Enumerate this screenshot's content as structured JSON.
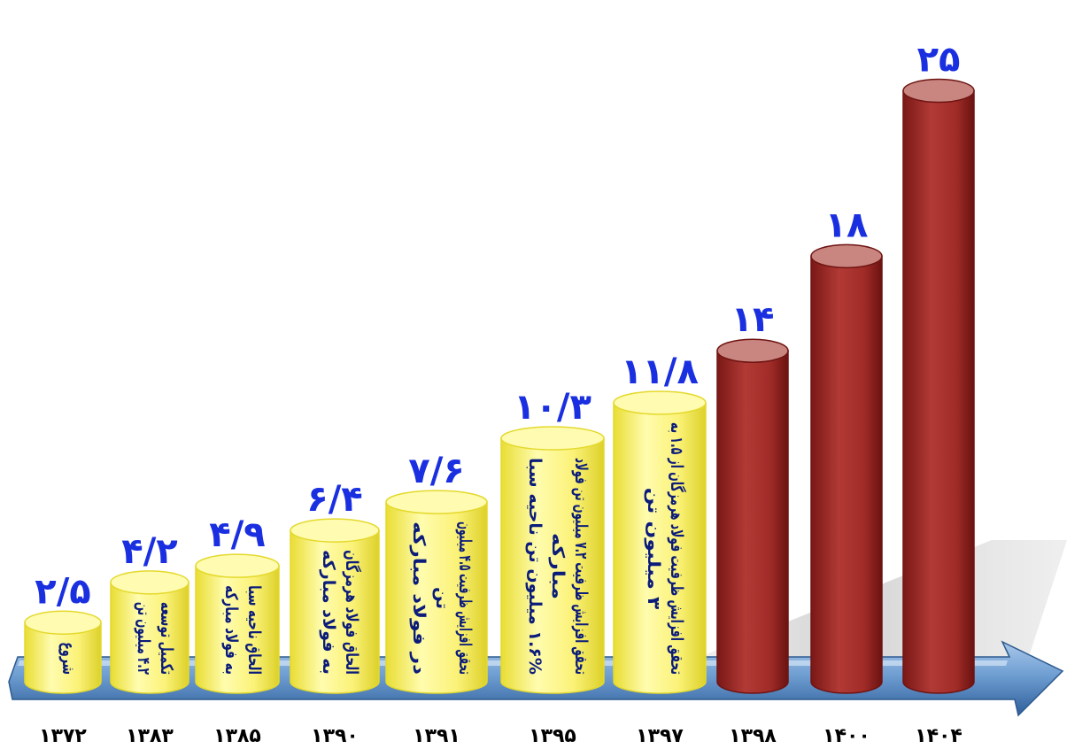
{
  "chart_data": {
    "type": "bar",
    "title": "",
    "xlabel": "",
    "ylabel": "",
    "ylim": [
      0,
      25
    ],
    "categories": [
      "۱۳۷۲",
      "۱۳۸۳",
      "۱۳۸۵",
      "۱۳۹۰",
      "۱۳۹۱",
      "۱۳۹۵",
      "۱۳۹۷",
      "۱۳۹۸",
      "۱۴۰۰",
      "۱۴۰۴"
    ],
    "values": [
      2.5,
      4.2,
      4.9,
      6.4,
      7.6,
      10.3,
      11.8,
      14,
      18,
      25
    ],
    "value_labels": [
      "۲/۵",
      "۴/۲",
      "۴/۹",
      "۶/۴",
      "۷/۶",
      "۱۰/۳",
      "۱۱/۸",
      "۱۴",
      "۱۸",
      "۲۵"
    ],
    "annotations": [
      [
        "شروع"
      ],
      [
        "تکمیل توسعه",
        "۴.۲ میلیون تن"
      ],
      [
        "الحاق ناحیه سبا",
        "به فولاد مبارکه"
      ],
      [
        "الحاق فولاد هرمزگان",
        "به فولاد مبارکه"
      ],
      [
        "تحقق افزایش ظرفیت ۴.۵ میلیون",
        "تن",
        "در فولاد مبارکه"
      ],
      [
        "تحقق افزایش ظرفیت ۷.۲ میلیون تن فولاد",
        "مبارکه",
        "۱.۶% میلیون تن ناحیه سبا"
      ],
      [
        "تحقق افزایش ظرفیت فولاد هرمزگان از ۱.۵ به",
        "۳ میلیون تن"
      ],
      [],
      [],
      []
    ],
    "bar_status": [
      "achieved",
      "achieved",
      "achieved",
      "achieved",
      "achieved",
      "achieved",
      "achieved",
      "planned",
      "planned",
      "planned"
    ],
    "colors": {
      "achieved_body": "#fbf37a",
      "achieved_edge": "#e4d92c",
      "planned_body": "#a62e2a",
      "planned_edge": "#6e1412",
      "planned_top": "#c98680",
      "value_label": "#1a2fe0",
      "annotation_text": "#0b1c7a",
      "arrow": "#5e8fc4"
    },
    "grid": false,
    "legend": "none"
  }
}
